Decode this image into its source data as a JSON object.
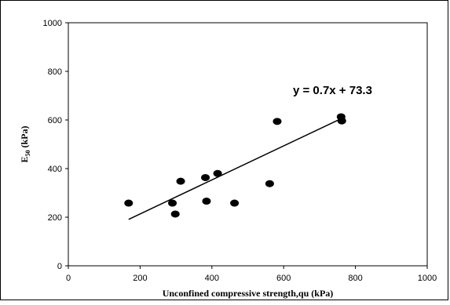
{
  "chart_data": {
    "type": "scatter",
    "xlabel": "Unconfined compressive strength,qu (kPa)",
    "ylabel": "E50 (kPa)",
    "ylabel_main": "E",
    "ylabel_sub": "50",
    "ylabel_unit": " (kPa)",
    "xlim": [
      0,
      1000
    ],
    "ylim": [
      0,
      1000
    ],
    "xticks": [
      0,
      200,
      400,
      600,
      800,
      1000
    ],
    "yticks": [
      0,
      200,
      400,
      600,
      800,
      1000
    ],
    "grid": false,
    "points": [
      {
        "x": 168,
        "y": 258
      },
      {
        "x": 290,
        "y": 258
      },
      {
        "x": 298,
        "y": 213
      },
      {
        "x": 313,
        "y": 348
      },
      {
        "x": 382,
        "y": 363
      },
      {
        "x": 385,
        "y": 266
      },
      {
        "x": 416,
        "y": 380
      },
      {
        "x": 463,
        "y": 258
      },
      {
        "x": 561,
        "y": 338
      },
      {
        "x": 582,
        "y": 594
      },
      {
        "x": 760,
        "y": 613
      },
      {
        "x": 762,
        "y": 596
      }
    ],
    "trendline": {
      "slope": 0.7,
      "intercept": 73.3,
      "x_range": [
        168,
        762
      ]
    },
    "equation": "y = 0.7x + 73.3",
    "colors": {
      "marker": "#000000",
      "line": "#000000"
    }
  }
}
